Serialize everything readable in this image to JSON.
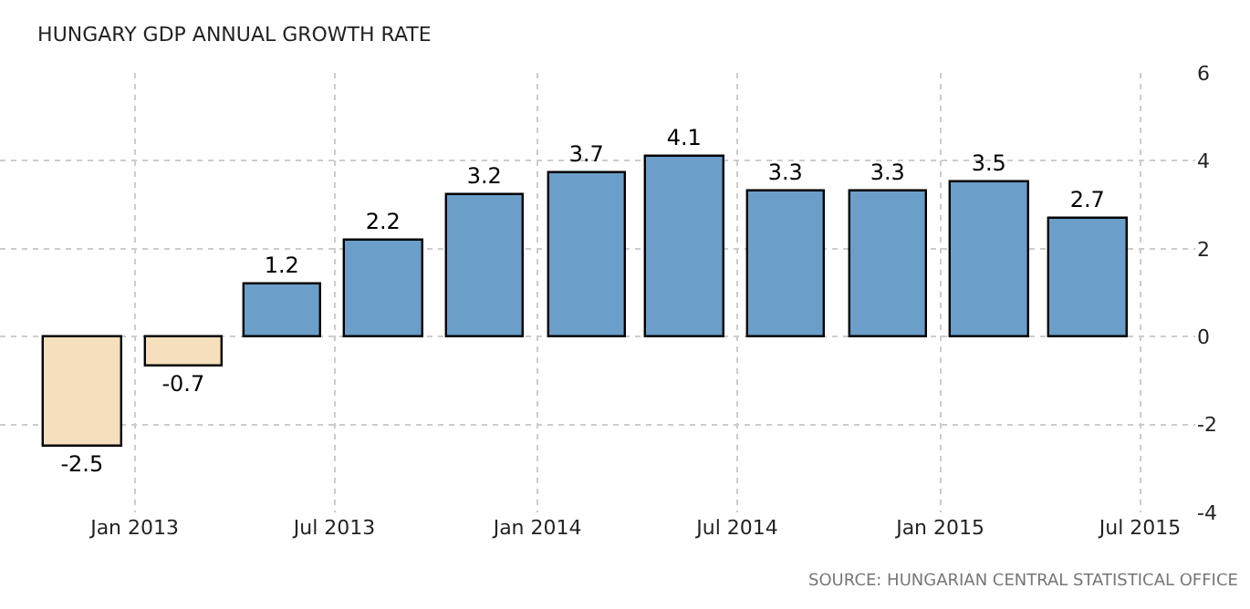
{
  "chart_data": {
    "type": "bar",
    "title": "HUNGARY GDP ANNUAL GROWTH RATE",
    "x": [
      "2012-11-15",
      "2013-02-15",
      "2013-05-15",
      "2013-08-15",
      "2013-11-15",
      "2014-02-15",
      "2014-05-15",
      "2014-08-15",
      "2014-11-15",
      "2015-02-15",
      "2015-05-15"
    ],
    "values": [
      -2.5,
      -0.7,
      1.2,
      2.2,
      3.2,
      3.7,
      4.1,
      3.3,
      3.3,
      3.5,
      2.7
    ],
    "colors": [
      "#f6dfbd",
      "#f6dfbd",
      "#6b9ec8",
      "#6b9ec8",
      "#6b9ec8",
      "#6b9ec8",
      "#6b9ec8",
      "#6b9ec8",
      "#6b9ec8",
      "#6b9ec8",
      "#6b9ec8"
    ],
    "xlim": [
      "2012-09-01",
      "2015-08-20"
    ],
    "xticks": [
      {
        "value": "2013-01-01",
        "label": "Jan 2013"
      },
      {
        "value": "2013-07-01",
        "label": "Jul 2013"
      },
      {
        "value": "2014-01-01",
        "label": "Jan 2014"
      },
      {
        "value": "2014-07-01",
        "label": "Jul 2014"
      },
      {
        "value": "2015-01-01",
        "label": "Jan 2015"
      },
      {
        "value": "2015-07-01",
        "label": "Jul 2015"
      }
    ],
    "ylim": [
      -4,
      6
    ],
    "yticks": [
      -4,
      -2,
      0,
      2,
      4,
      6
    ],
    "grid": true,
    "data_labels": true,
    "legend": false,
    "annotations": [
      "SOURCE: HUNGARIAN CENTRAL STATISTICAL OFFICE"
    ]
  }
}
